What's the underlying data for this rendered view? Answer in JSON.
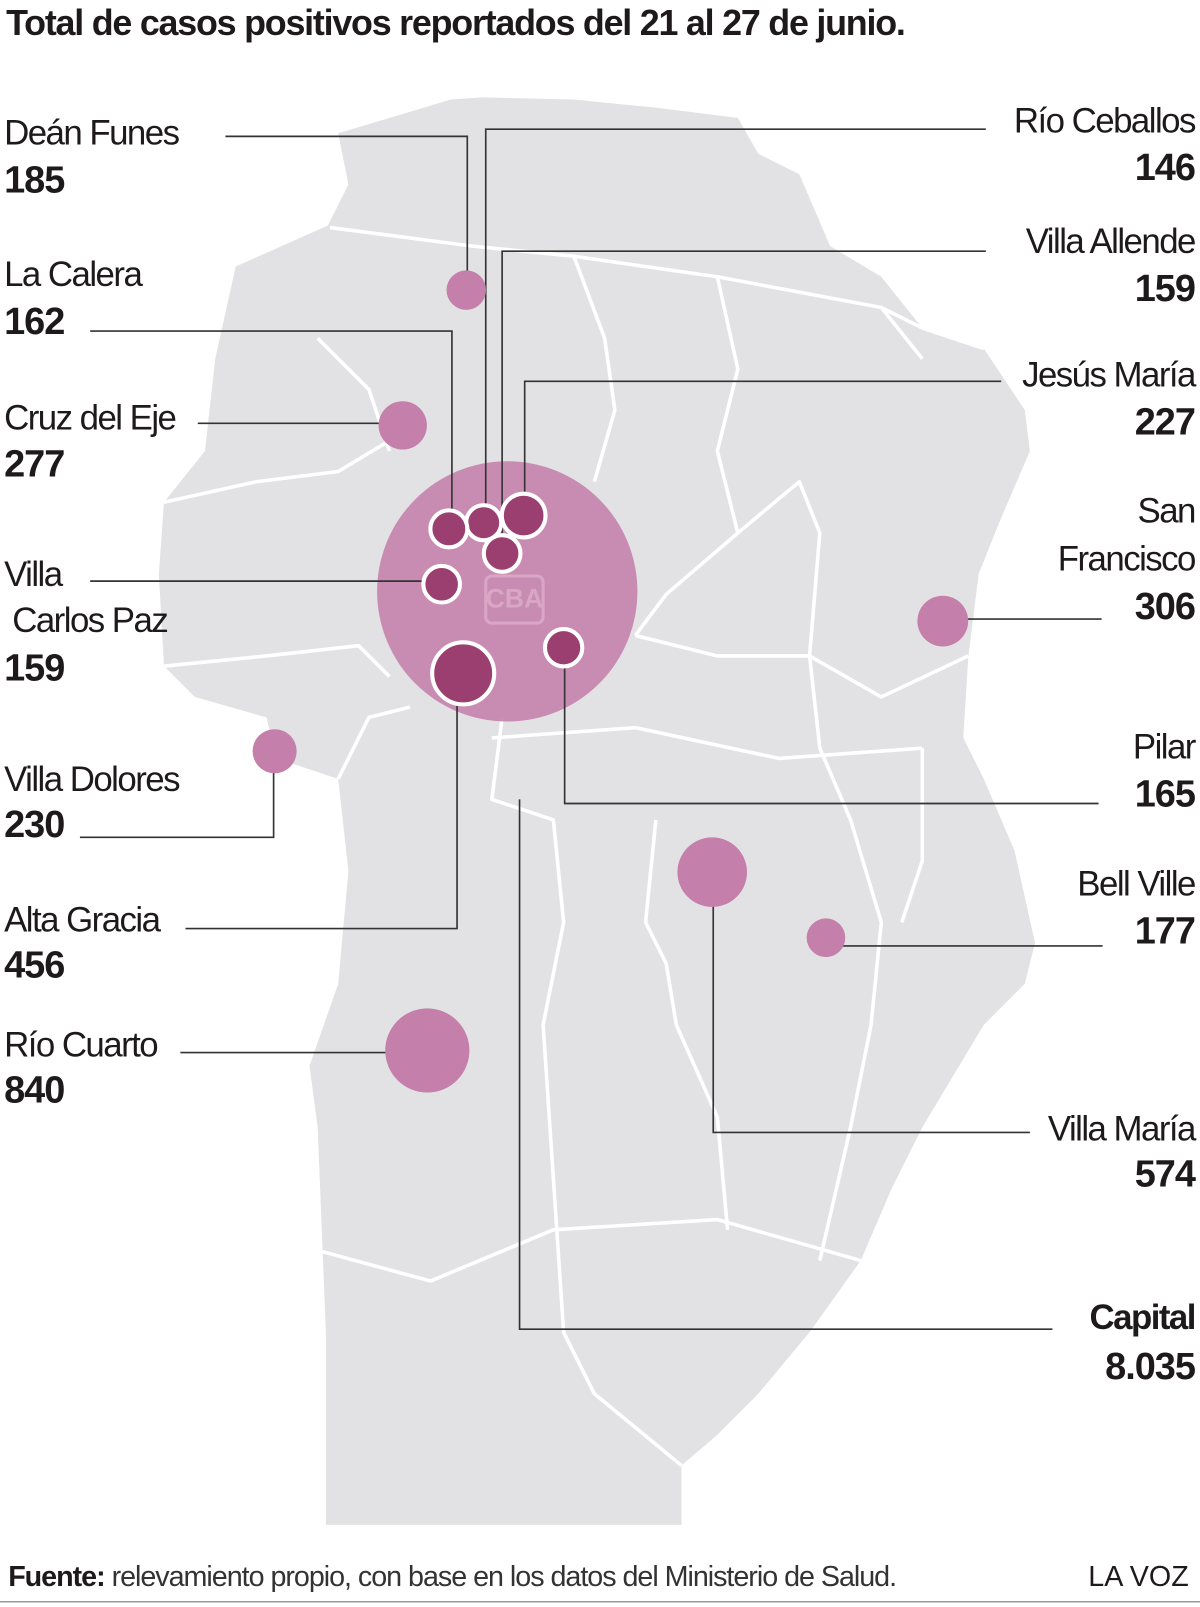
{
  "header": {
    "title": "Total de casos positivos reportados del 21 al 27 de junio."
  },
  "map": {
    "label": "CBA",
    "land_color": "#e2e2e4",
    "bubble_color": "#c47fab",
    "highlight_color": "#9a3f70"
  },
  "cities": [
    {
      "name": "Deán Funes",
      "value": 185
    },
    {
      "name": "Río Ceballos",
      "value": 146
    },
    {
      "name": "Villa Allende",
      "value": 159
    },
    {
      "name": "La Calera",
      "value": 162
    },
    {
      "name": "Jesús María",
      "value": 227
    },
    {
      "name": "Cruz del Eje",
      "value": 277
    },
    {
      "name": "San Francisco",
      "value": 306
    },
    {
      "name": "Villa Carlos Paz",
      "value": 159
    },
    {
      "name": "Villa Dolores",
      "value": 230
    },
    {
      "name": "Pilar",
      "value": 165
    },
    {
      "name": "Alta Gracia",
      "value": 456
    },
    {
      "name": "Bell Ville",
      "value": 177
    },
    {
      "name": "Río Cuarto",
      "value": 840
    },
    {
      "name": "Villa María",
      "value": 574
    },
    {
      "name": "Capital",
      "value": 8035,
      "value_label": "8.035",
      "emphasis": true
    }
  ],
  "footer": {
    "source_label": "Fuente:",
    "source_text": "relevamiento propio, con base en los datos del Ministerio de Salud.",
    "brand": "LA VOZ"
  }
}
